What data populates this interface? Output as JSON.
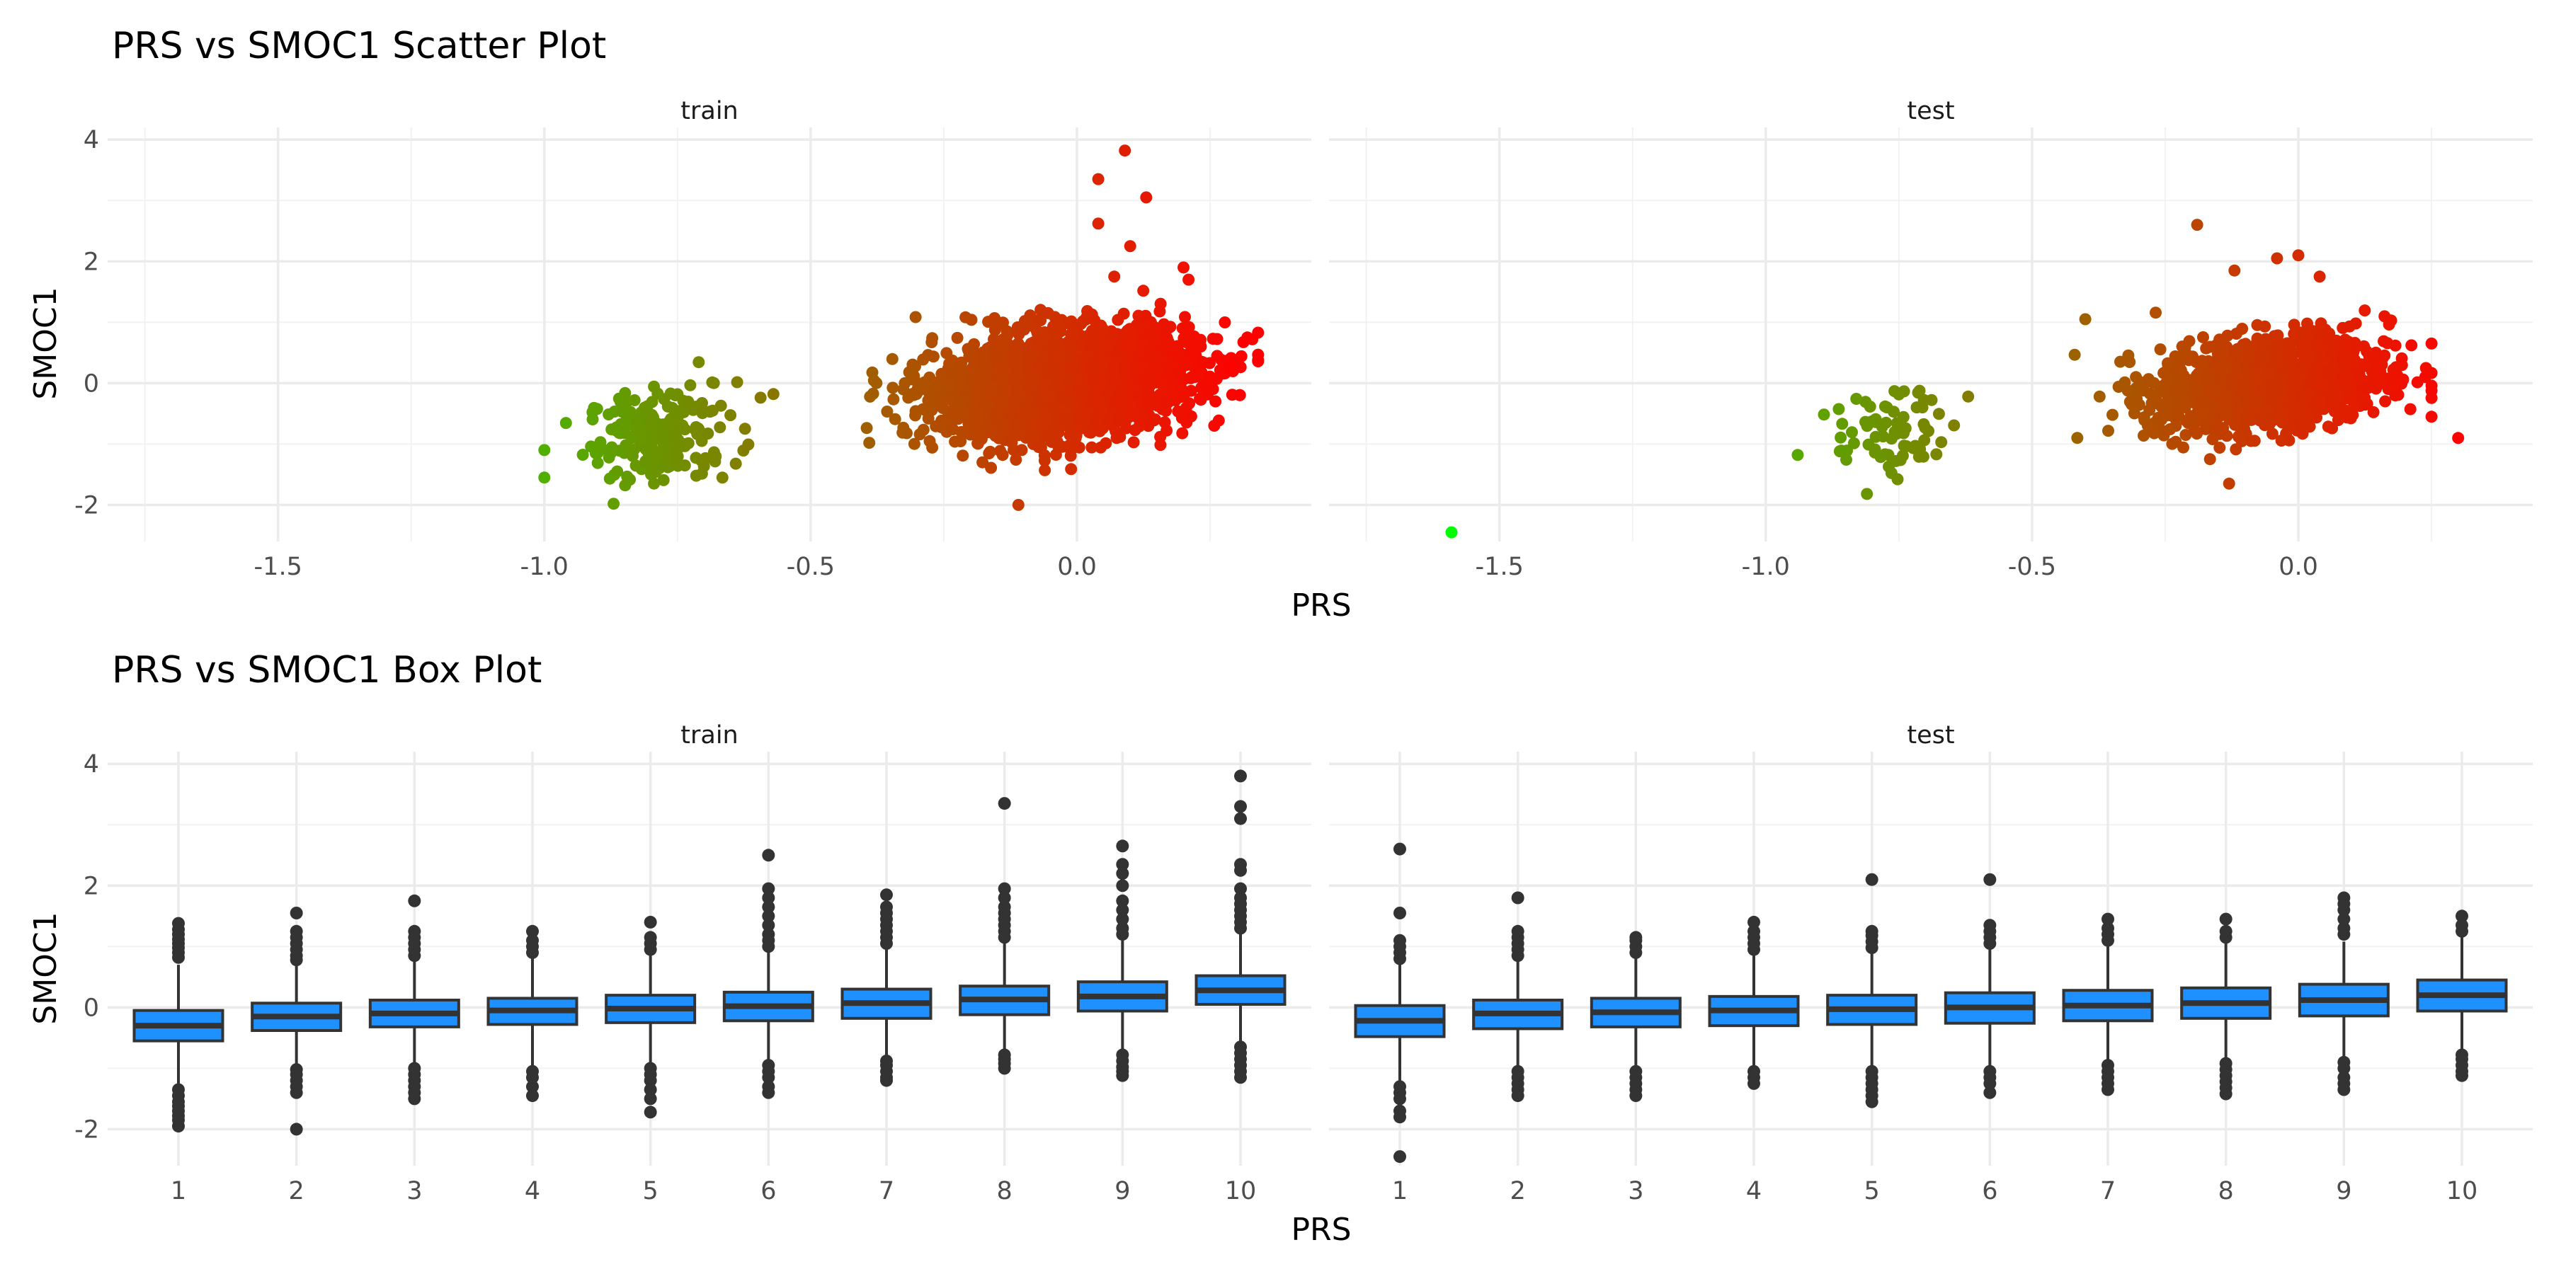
{
  "colors": {
    "low": "#00ff00",
    "high": "#ff0000",
    "box_fill": "#1e90ff",
    "box_line": "#333333",
    "outlier": "#333333"
  },
  "scatter": {
    "title": "PRS vs SMOC1 Scatter Plot",
    "xlabel": "PRS",
    "ylabel": "SMOC1"
  },
  "box": {
    "title": "PRS vs SMOC1 Box Plot",
    "xlabel": "PRS",
    "ylabel": "SMOC1"
  },
  "chart_data": [
    {
      "type": "scatter",
      "title": "PRS vs SMOC1 Scatter Plot",
      "xlabel": "PRS",
      "ylabel": "SMOC1",
      "xlim": [
        -1.82,
        0.44
      ],
      "ylim": [
        -2.6,
        4.2
      ],
      "x_ticks": [
        -1.5,
        -1.0,
        -0.5,
        0.0
      ],
      "x_tick_labels": [
        "-1.5",
        "-1.0",
        "-0.5",
        "0.0"
      ],
      "y_ticks": [
        -2,
        0,
        2,
        4
      ],
      "y_tick_labels": [
        "-2",
        "0",
        "2",
        "4"
      ],
      "color_scale": {
        "low": "#00ff00",
        "high": "#ff0000",
        "min": -1.6,
        "max": 0.32
      },
      "grid": true,
      "legend": "none",
      "panels": [
        {
          "name": "train",
          "clusters": [
            {
              "x_mean": -0.78,
              "x_sd": 0.07,
              "y_mean": -0.85,
              "y_sd": 0.38,
              "n": 200,
              "x_range": [
                -1.0,
                -0.55
              ]
            },
            {
              "x_mean": -0.02,
              "x_sd": 0.12,
              "y_mean": 0.0,
              "y_sd": 0.42,
              "n": 2400,
              "x_range": [
                -0.42,
                0.34
              ]
            }
          ],
          "points": [
            [
              0.09,
              3.82
            ],
            [
              0.04,
              3.35
            ],
            [
              0.13,
              3.05
            ],
            [
              0.04,
              2.62
            ],
            [
              0.1,
              2.25
            ],
            [
              0.2,
              1.9
            ],
            [
              0.32,
              0.75
            ],
            [
              0.34,
              0.38
            ],
            [
              0.3,
              0.3
            ],
            [
              0.26,
              -0.3
            ],
            [
              -0.11,
              -2.0
            ],
            [
              -0.87,
              -1.98
            ],
            [
              -1.0,
              -1.55
            ],
            [
              -0.57,
              -0.18
            ],
            [
              -0.39,
              -0.98
            ],
            [
              0.07,
              1.75
            ]
          ]
        },
        {
          "name": "test",
          "clusters": [
            {
              "x_mean": -0.77,
              "x_sd": 0.05,
              "y_mean": -0.8,
              "y_sd": 0.35,
              "n": 70,
              "x_range": [
                -0.95,
                -0.63
              ]
            },
            {
              "x_mean": -0.05,
              "x_sd": 0.11,
              "y_mean": 0.0,
              "y_sd": 0.38,
              "n": 1200,
              "x_range": [
                -0.42,
                0.25
              ]
            }
          ],
          "points": [
            [
              -1.59,
              -2.45
            ],
            [
              -0.19,
              2.6
            ],
            [
              -0.04,
              2.05
            ],
            [
              0.0,
              2.1
            ],
            [
              -0.12,
              1.85
            ],
            [
              0.04,
              1.75
            ],
            [
              0.3,
              -0.9
            ],
            [
              0.25,
              0.65
            ],
            [
              -0.4,
              1.05
            ],
            [
              -0.62,
              -0.22
            ],
            [
              -0.94,
              -1.18
            ],
            [
              -0.81,
              -1.82
            ],
            [
              -0.13,
              -1.65
            ]
          ]
        }
      ]
    },
    {
      "type": "box",
      "title": "PRS vs SMOC1 Box Plot",
      "xlabel": "PRS",
      "ylabel": "SMOC1",
      "categories": [
        "1",
        "2",
        "3",
        "4",
        "5",
        "6",
        "7",
        "8",
        "9",
        "10"
      ],
      "ylim": [
        -2.6,
        4.2
      ],
      "y_ticks": [
        -2,
        0,
        2,
        4
      ],
      "y_tick_labels": [
        "-2",
        "0",
        "2",
        "4"
      ],
      "grid": true,
      "panels": [
        {
          "name": "train",
          "boxes": [
            {
              "q1": -0.55,
              "median": -0.3,
              "q3": -0.05,
              "low": -1.25,
              "high": 0.7,
              "outliers": [
                0.82,
                0.9,
                0.98,
                1.05,
                1.12,
                1.2,
                1.28,
                1.38,
                -1.35,
                -1.45,
                -1.55,
                -1.62,
                -1.7,
                -1.78,
                -1.85,
                -1.95
              ]
            },
            {
              "q1": -0.38,
              "median": -0.15,
              "q3": 0.07,
              "low": -0.98,
              "high": 0.72,
              "outliers": [
                0.78,
                0.85,
                0.95,
                1.05,
                1.15,
                1.25,
                1.55,
                -1.02,
                -1.1,
                -1.2,
                -1.3,
                -1.4,
                -2.0
              ]
            },
            {
              "q1": -0.32,
              "median": -0.1,
              "q3": 0.12,
              "low": -0.95,
              "high": 0.75,
              "outliers": [
                0.85,
                0.95,
                1.05,
                1.15,
                1.25,
                1.75,
                -1.0,
                -1.1,
                -1.2,
                -1.3,
                -1.4,
                -1.5
              ]
            },
            {
              "q1": -0.28,
              "median": -0.05,
              "q3": 0.15,
              "low": -0.95,
              "high": 0.8,
              "outliers": [
                0.9,
                1.0,
                1.1,
                1.25,
                -1.05,
                -1.15,
                -1.3,
                -1.45
              ]
            },
            {
              "q1": -0.25,
              "median": -0.02,
              "q3": 0.2,
              "low": -0.9,
              "high": 0.85,
              "outliers": [
                0.95,
                1.05,
                1.15,
                1.4,
                -1.0,
                -1.1,
                -1.2,
                -1.35,
                -1.5,
                -1.72
              ]
            },
            {
              "q1": -0.22,
              "median": 0.02,
              "q3": 0.25,
              "low": -0.9,
              "high": 0.92,
              "outliers": [
                1.0,
                1.1,
                1.2,
                1.35,
                1.5,
                1.65,
                1.8,
                1.95,
                2.5,
                -0.95,
                -1.05,
                -1.15,
                -1.3,
                -1.4
              ]
            },
            {
              "q1": -0.18,
              "median": 0.07,
              "q3": 0.3,
              "low": -0.82,
              "high": 0.98,
              "outliers": [
                1.05,
                1.15,
                1.25,
                1.35,
                1.45,
                1.55,
                1.65,
                1.85,
                -0.88,
                -0.95,
                -1.05,
                -1.15,
                -1.2
              ]
            },
            {
              "q1": -0.12,
              "median": 0.13,
              "q3": 0.35,
              "low": -0.72,
              "high": 1.05,
              "outliers": [
                1.15,
                1.25,
                1.35,
                1.45,
                1.55,
                1.65,
                1.8,
                1.95,
                3.35,
                -0.78,
                -0.85,
                -0.92,
                -1.0
              ]
            },
            {
              "q1": -0.06,
              "median": 0.18,
              "q3": 0.42,
              "low": -0.7,
              "high": 1.1,
              "outliers": [
                1.2,
                1.3,
                1.45,
                1.6,
                1.75,
                2.0,
                2.2,
                2.35,
                2.65,
                -0.78,
                -0.88,
                -0.98,
                -1.05,
                -1.12
              ]
            },
            {
              "q1": 0.05,
              "median": 0.28,
              "q3": 0.52,
              "low": -0.6,
              "high": 1.2,
              "outliers": [
                1.3,
                1.4,
                1.5,
                1.6,
                1.7,
                1.8,
                1.95,
                2.25,
                2.35,
                3.1,
                3.3,
                3.8,
                -0.65,
                -0.75,
                -0.85,
                -0.95,
                -1.05,
                -1.15
              ]
            }
          ]
        },
        {
          "name": "test",
          "boxes": [
            {
              "q1": -0.48,
              "median": -0.22,
              "q3": 0.03,
              "low": -1.2,
              "high": 0.72,
              "outliers": [
                0.8,
                0.9,
                1.0,
                1.1,
                1.55,
                2.6,
                -1.3,
                -1.4,
                -1.5,
                -1.7,
                -1.8,
                -2.45
              ]
            },
            {
              "q1": -0.35,
              "median": -0.1,
              "q3": 0.12,
              "low": -1.0,
              "high": 0.78,
              "outliers": [
                0.85,
                0.95,
                1.05,
                1.15,
                1.25,
                1.8,
                -1.05,
                -1.15,
                -1.25,
                -1.35,
                -1.45
              ]
            },
            {
              "q1": -0.32,
              "median": -0.08,
              "q3": 0.15,
              "low": -1.0,
              "high": 0.82,
              "outliers": [
                0.9,
                1.0,
                1.1,
                1.15,
                -1.05,
                -1.15,
                -1.25,
                -1.35,
                -1.45
              ]
            },
            {
              "q1": -0.3,
              "median": -0.05,
              "q3": 0.18,
              "low": -1.0,
              "high": 0.85,
              "outliers": [
                0.95,
                1.05,
                1.15,
                1.25,
                1.4,
                -1.05,
                -1.15,
                -1.25
              ]
            },
            {
              "q1": -0.28,
              "median": -0.03,
              "q3": 0.2,
              "low": -0.98,
              "high": 0.88,
              "outliers": [
                0.98,
                1.08,
                1.18,
                1.25,
                2.1,
                -1.05,
                -1.15,
                -1.25,
                -1.35,
                -1.45,
                -1.55
              ]
            },
            {
              "q1": -0.26,
              "median": 0.0,
              "q3": 0.24,
              "low": -0.95,
              "high": 0.95,
              "outliers": [
                1.05,
                1.15,
                1.25,
                1.35,
                2.1,
                -1.05,
                -1.15,
                -1.25,
                -1.4
              ]
            },
            {
              "q1": -0.22,
              "median": 0.03,
              "q3": 0.28,
              "low": -0.88,
              "high": 1.0,
              "outliers": [
                1.1,
                1.2,
                1.3,
                1.45,
                -0.95,
                -1.05,
                -1.15,
                -1.25,
                -1.35
              ]
            },
            {
              "q1": -0.18,
              "median": 0.07,
              "q3": 0.32,
              "low": -0.85,
              "high": 1.05,
              "outliers": [
                1.15,
                1.25,
                1.45,
                -0.92,
                -1.02,
                -1.12,
                -1.22,
                -1.32,
                -1.42
              ]
            },
            {
              "q1": -0.14,
              "median": 0.12,
              "q3": 0.38,
              "low": -0.82,
              "high": 1.08,
              "outliers": [
                1.2,
                1.3,
                1.45,
                1.6,
                1.7,
                1.8,
                -0.9,
                -1.0,
                -1.15,
                -1.25,
                -1.35
              ]
            },
            {
              "q1": -0.06,
              "median": 0.2,
              "q3": 0.45,
              "low": -0.72,
              "high": 1.15,
              "outliers": [
                1.25,
                1.35,
                1.5,
                -0.78,
                -0.85,
                -0.95,
                -1.05,
                -1.12
              ]
            }
          ]
        }
      ]
    }
  ]
}
